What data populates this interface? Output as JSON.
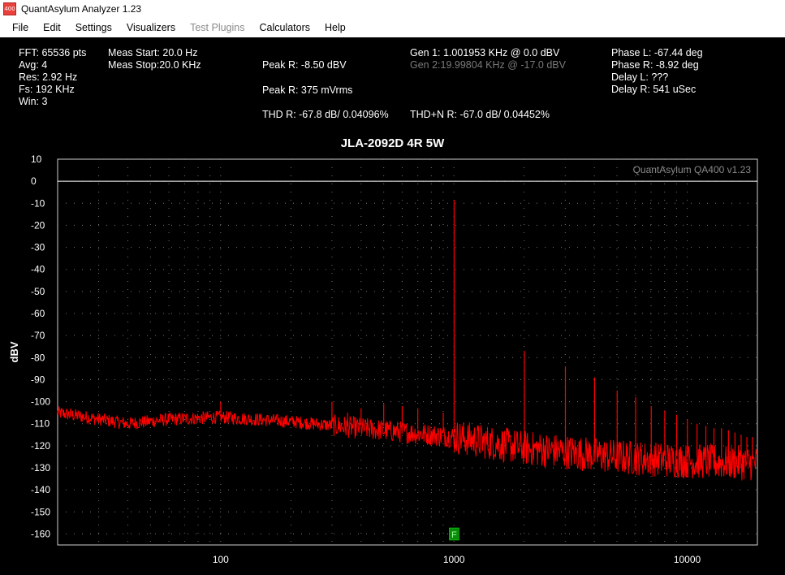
{
  "window": {
    "title": "QuantAsylum Analyzer 1.23",
    "icon_label": "400",
    "icon_color": "#e8413c"
  },
  "menu": [
    "File",
    "Edit",
    "Settings",
    "Visualizers",
    "Test Plugins",
    "Calculators",
    "Help"
  ],
  "menu_disabled": [
    "Test Plugins"
  ],
  "info": {
    "fft": "FFT: 65536 pts",
    "avg": "Avg: 4",
    "res": "Res: 2.92 Hz",
    "fs": "Fs: 192 KHz",
    "win": "Win: 3",
    "meas_start": "Meas Start: 20.0 Hz",
    "meas_stop": "Meas Stop:20.0 KHz",
    "peak_r_dbv": "Peak R: -8.50 dBV",
    "peak_r_mvrms": "Peak R: 375 mVrms",
    "thd_r": "THD R: -67.8 dB/ 0.04096%",
    "gen1": "Gen 1: 1.001953 KHz @ 0.0  dBV",
    "gen2": "Gen 2:19.99804 KHz @ -17.0  dBV",
    "thdn_r": "THD+N R: -67.0 dB/ 0.04452%",
    "phase_l": "Phase L: -67.44 deg",
    "phase_r": "Phase R: -8.92 deg",
    "delay_l": "Delay L: ???",
    "delay_r": "Delay R: 541 uSec"
  },
  "chart_data": {
    "type": "line",
    "title": "JLA-2092D 4R 5W",
    "watermark": "QuantAsylum QA400 v1.23",
    "ylabel": "dBV",
    "xlabel": "",
    "x_scale": "log",
    "xlim": [
      20,
      20000
    ],
    "ylim": [
      -165,
      10
    ],
    "yticks": [
      10,
      0,
      -10,
      -20,
      -30,
      -40,
      -50,
      -60,
      -70,
      -80,
      -90,
      -100,
      -110,
      -120,
      -130,
      -140,
      -150,
      -160
    ],
    "xticks": [
      100,
      1000,
      10000
    ],
    "grid": true,
    "reference_line_db": 0,
    "series_color": "#ff0000",
    "marker": {
      "label": "F",
      "x": 1002,
      "color": "#0a8a0a"
    },
    "fundamental": {
      "x": 1001.95,
      "y": -8.5
    },
    "harmonics": [
      {
        "x": 2004,
        "y": -77
      },
      {
        "x": 3006,
        "y": -84
      },
      {
        "x": 4008,
        "y": -89
      },
      {
        "x": 5010,
        "y": -95
      },
      {
        "x": 6012,
        "y": -98
      },
      {
        "x": 7014,
        "y": -102
      },
      {
        "x": 8016,
        "y": -104
      },
      {
        "x": 9018,
        "y": -106
      },
      {
        "x": 10020,
        "y": -108
      },
      {
        "x": 11022,
        "y": -110
      },
      {
        "x": 12024,
        "y": -111
      },
      {
        "x": 13026,
        "y": -112
      },
      {
        "x": 14028,
        "y": -112
      },
      {
        "x": 15030,
        "y": -113
      },
      {
        "x": 16032,
        "y": -114
      },
      {
        "x": 17034,
        "y": -115
      },
      {
        "x": 18036,
        "y": -116
      },
      {
        "x": 19038,
        "y": -116
      }
    ],
    "spurs": [
      {
        "x": 100,
        "y": -100
      },
      {
        "x": 300,
        "y": -100
      },
      {
        "x": 350,
        "y": -105
      },
      {
        "x": 400,
        "y": -103
      },
      {
        "x": 500,
        "y": -101
      },
      {
        "x": 600,
        "y": -102
      },
      {
        "x": 700,
        "y": -103
      },
      {
        "x": 900,
        "y": -105
      }
    ],
    "noise_floor": [
      {
        "x": 20,
        "y": -105
      },
      {
        "x": 40,
        "y": -110
      },
      {
        "x": 60,
        "y": -108
      },
      {
        "x": 100,
        "y": -107
      },
      {
        "x": 200,
        "y": -109
      },
      {
        "x": 500,
        "y": -113
      },
      {
        "x": 1000,
        "y": -116
      },
      {
        "x": 2000,
        "y": -121
      },
      {
        "x": 5000,
        "y": -125
      },
      {
        "x": 10000,
        "y": -127
      },
      {
        "x": 20000,
        "y": -128
      }
    ]
  }
}
